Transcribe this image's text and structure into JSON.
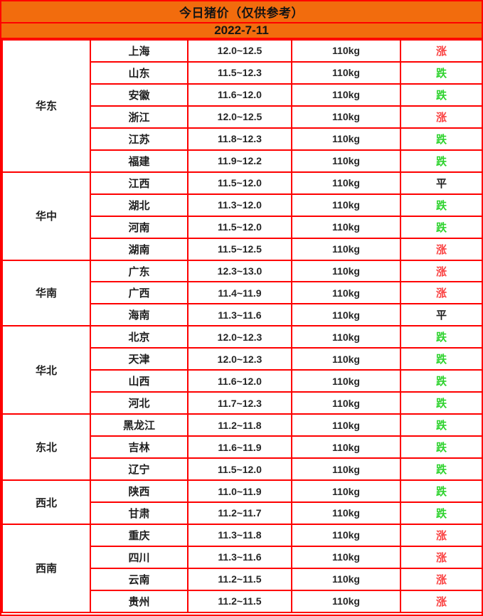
{
  "header": {
    "title": "今日猪价（仅供参考）",
    "date": "2022-7-11"
  },
  "colors": {
    "header_bg": "#f26c0d",
    "border": "#fe0000",
    "text": "#1f1f1f",
    "trend_up": "#fa4343",
    "trend_down": "#2fd32f",
    "trend_flat": "#1f1f1f"
  },
  "columns": [
    "region",
    "province",
    "price_range",
    "weight",
    "trend"
  ],
  "table": {
    "groups": [
      {
        "region": "华东",
        "rows": [
          {
            "province": "上海",
            "price": "12.0~12.5",
            "weight": "110kg",
            "trend": "涨",
            "trend_type": "up"
          },
          {
            "province": "山东",
            "price": "11.5~12.3",
            "weight": "110kg",
            "trend": "跌",
            "trend_type": "down"
          },
          {
            "province": "安徽",
            "price": "11.6~12.0",
            "weight": "110kg",
            "trend": "跌",
            "trend_type": "down"
          },
          {
            "province": "浙江",
            "price": "12.0~12.5",
            "weight": "110kg",
            "trend": "涨",
            "trend_type": "up"
          },
          {
            "province": "江苏",
            "price": "11.8~12.3",
            "weight": "110kg",
            "trend": "跌",
            "trend_type": "down"
          },
          {
            "province": "福建",
            "price": "11.9~12.2",
            "weight": "110kg",
            "trend": "跌",
            "trend_type": "down"
          }
        ]
      },
      {
        "region": "华中",
        "rows": [
          {
            "province": "江西",
            "price": "11.5~12.0",
            "weight": "110kg",
            "trend": "平",
            "trend_type": "flat"
          },
          {
            "province": "湖北",
            "price": "11.3~12.0",
            "weight": "110kg",
            "trend": "跌",
            "trend_type": "down"
          },
          {
            "province": "河南",
            "price": "11.5~12.0",
            "weight": "110kg",
            "trend": "跌",
            "trend_type": "down"
          },
          {
            "province": "湖南",
            "price": "11.5~12.5",
            "weight": "110kg",
            "trend": "涨",
            "trend_type": "up"
          }
        ]
      },
      {
        "region": "华南",
        "rows": [
          {
            "province": "广东",
            "price": "12.3~13.0",
            "weight": "110kg",
            "trend": "涨",
            "trend_type": "up"
          },
          {
            "province": "广西",
            "price": "11.4~11.9",
            "weight": "110kg",
            "trend": "涨",
            "trend_type": "up"
          },
          {
            "province": "海南",
            "price": "11.3~11.6",
            "weight": "110kg",
            "trend": "平",
            "trend_type": "flat"
          }
        ]
      },
      {
        "region": "华北",
        "rows": [
          {
            "province": "北京",
            "price": "12.0~12.3",
            "weight": "110kg",
            "trend": "跌",
            "trend_type": "down"
          },
          {
            "province": "天津",
            "price": "12.0~12.3",
            "weight": "110kg",
            "trend": "跌",
            "trend_type": "down"
          },
          {
            "province": "山西",
            "price": "11.6~12.0",
            "weight": "110kg",
            "trend": "跌",
            "trend_type": "down"
          },
          {
            "province": "河北",
            "price": "11.7~12.3",
            "weight": "110kg",
            "trend": "跌",
            "trend_type": "down"
          }
        ]
      },
      {
        "region": "东北",
        "rows": [
          {
            "province": "黑龙江",
            "price": "11.2~11.8",
            "weight": "110kg",
            "trend": "跌",
            "trend_type": "down"
          },
          {
            "province": "吉林",
            "price": "11.6~11.9",
            "weight": "110kg",
            "trend": "跌",
            "trend_type": "down"
          },
          {
            "province": "辽宁",
            "price": "11.5~12.0",
            "weight": "110kg",
            "trend": "跌",
            "trend_type": "down"
          }
        ]
      },
      {
        "region": "西北",
        "rows": [
          {
            "province": "陕西",
            "price": "11.0~11.9",
            "weight": "110kg",
            "trend": "跌",
            "trend_type": "down"
          },
          {
            "province": "甘肃",
            "price": "11.2~11.7",
            "weight": "110kg",
            "trend": "跌",
            "trend_type": "down"
          }
        ]
      },
      {
        "region": "西南",
        "rows": [
          {
            "province": "重庆",
            "price": "11.3~11.8",
            "weight": "110kg",
            "trend": "涨",
            "trend_type": "up"
          },
          {
            "province": "四川",
            "price": "11.3~11.6",
            "weight": "110kg",
            "trend": "涨",
            "trend_type": "up"
          },
          {
            "province": "云南",
            "price": "11.2~11.5",
            "weight": "110kg",
            "trend": "涨",
            "trend_type": "up"
          },
          {
            "province": "贵州",
            "price": "11.2~11.5",
            "weight": "110kg",
            "trend": "涨",
            "trend_type": "up"
          }
        ]
      }
    ]
  }
}
